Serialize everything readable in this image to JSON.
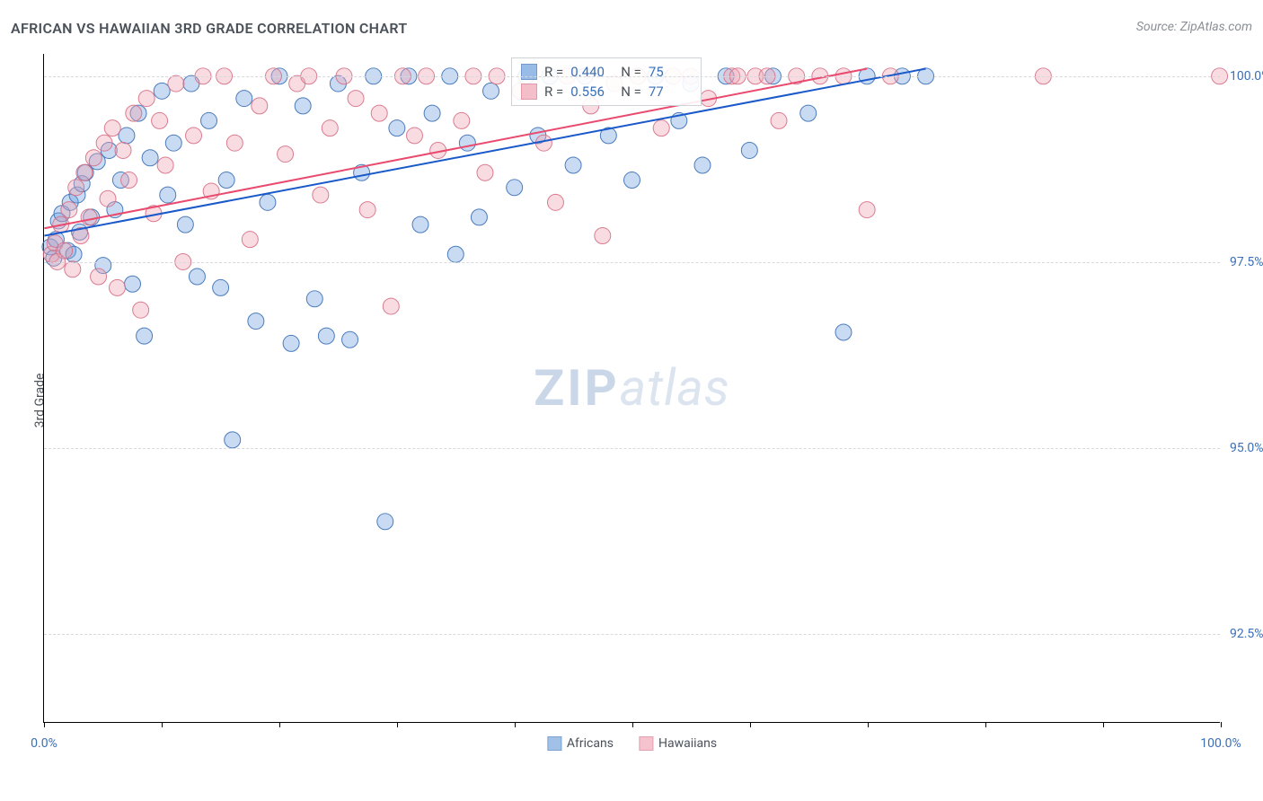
{
  "title": "AFRICAN VS HAWAIIAN 3RD GRADE CORRELATION CHART",
  "source": "Source: ZipAtlas.com",
  "watermark_bold": "ZIP",
  "watermark_light": "atlas",
  "chart": {
    "type": "scatter",
    "plot_bg": "#ffffff",
    "grid_color": "#d6d9dd",
    "axis_color": "#000000",
    "tick_label_color": "#3b6fb6",
    "y_axis_label": "3rd Grade",
    "x_range": [
      0,
      100
    ],
    "y_range": [
      91.3,
      100.3
    ],
    "y_ticks": [
      {
        "v": 100.0,
        "label": "100.0%"
      },
      {
        "v": 97.5,
        "label": "97.5%"
      },
      {
        "v": 95.0,
        "label": "95.0%"
      },
      {
        "v": 92.5,
        "label": "92.5%"
      }
    ],
    "x_ticks": [
      0,
      10,
      20,
      30,
      40,
      50,
      60,
      70,
      80,
      90,
      100
    ],
    "x_tick_labels": [
      {
        "v": 0,
        "label": "0.0%"
      },
      {
        "v": 100,
        "label": "100.0%"
      }
    ],
    "marker_radius": 9,
    "marker_fill_opacity": 0.38,
    "marker_stroke_opacity": 0.9,
    "trend_line_width": 2,
    "series": [
      {
        "key": "africans",
        "label": "Africans",
        "color_fill": "#6fa0de",
        "color_stroke": "#3b6fb6",
        "trend_color": "#1959c9",
        "R": "0.440",
        "N": "75",
        "trend": {
          "x1": 0,
          "y1": 97.85,
          "x2": 75,
          "y2": 100.1
        },
        "points": [
          [
            0.5,
            97.7
          ],
          [
            0.8,
            97.55
          ],
          [
            1.0,
            97.8
          ],
          [
            1.2,
            98.05
          ],
          [
            1.5,
            98.15
          ],
          [
            2.0,
            97.65
          ],
          [
            2.2,
            98.3
          ],
          [
            2.5,
            97.6
          ],
          [
            2.8,
            98.4
          ],
          [
            3.0,
            97.9
          ],
          [
            3.2,
            98.55
          ],
          [
            3.5,
            98.7
          ],
          [
            4.0,
            98.1
          ],
          [
            4.5,
            98.85
          ],
          [
            5.0,
            97.45
          ],
          [
            5.5,
            99.0
          ],
          [
            6.0,
            98.2
          ],
          [
            6.5,
            98.6
          ],
          [
            7.0,
            99.2
          ],
          [
            7.5,
            97.2
          ],
          [
            8.0,
            99.5
          ],
          [
            8.5,
            96.5
          ],
          [
            9.0,
            98.9
          ],
          [
            10.0,
            99.8
          ],
          [
            10.5,
            98.4
          ],
          [
            11.0,
            99.1
          ],
          [
            12.0,
            98.0
          ],
          [
            12.5,
            99.9
          ],
          [
            13.0,
            97.3
          ],
          [
            14.0,
            99.4
          ],
          [
            15.0,
            97.15
          ],
          [
            15.5,
            98.6
          ],
          [
            16.0,
            95.1
          ],
          [
            17.0,
            99.7
          ],
          [
            18.0,
            96.7
          ],
          [
            19.0,
            98.3
          ],
          [
            20.0,
            100.0
          ],
          [
            21.0,
            96.4
          ],
          [
            22.0,
            99.6
          ],
          [
            23.0,
            97.0
          ],
          [
            24.0,
            96.5
          ],
          [
            25.0,
            99.9
          ],
          [
            26.0,
            96.45
          ],
          [
            27.0,
            98.7
          ],
          [
            28.0,
            100.0
          ],
          [
            29.0,
            94.0
          ],
          [
            30.0,
            99.3
          ],
          [
            31.0,
            100.0
          ],
          [
            32.0,
            98.0
          ],
          [
            33.0,
            99.5
          ],
          [
            34.5,
            100.0
          ],
          [
            35.0,
            97.6
          ],
          [
            36.0,
            99.1
          ],
          [
            37.0,
            98.1
          ],
          [
            38.0,
            99.8
          ],
          [
            40.0,
            98.5
          ],
          [
            41.0,
            100.0
          ],
          [
            42.0,
            99.2
          ],
          [
            43.0,
            100.0
          ],
          [
            45.0,
            98.8
          ],
          [
            46.0,
            100.0
          ],
          [
            48.0,
            99.2
          ],
          [
            50.0,
            98.6
          ],
          [
            52.0,
            100.0
          ],
          [
            54.0,
            99.4
          ],
          [
            55.0,
            99.9
          ],
          [
            56.0,
            98.8
          ],
          [
            58.0,
            100.0
          ],
          [
            60.0,
            99.0
          ],
          [
            62.0,
            100.0
          ],
          [
            65.0,
            99.5
          ],
          [
            68.0,
            96.55
          ],
          [
            70.0,
            100.0
          ],
          [
            73.0,
            100.0
          ],
          [
            75.0,
            100.0
          ]
        ]
      },
      {
        "key": "hawaiians",
        "label": "Hawaiians",
        "color_fill": "#f0a4b4",
        "color_stroke": "#d66f86",
        "trend_color": "#e94a6e",
        "R": "0.556",
        "N": "77",
        "trend": {
          "x1": 0,
          "y1": 97.95,
          "x2": 70,
          "y2": 100.1
        },
        "points": [
          [
            0.6,
            97.6
          ],
          [
            0.9,
            97.75
          ],
          [
            1.1,
            97.5
          ],
          [
            1.4,
            98.0
          ],
          [
            1.7,
            97.65
          ],
          [
            2.1,
            98.2
          ],
          [
            2.4,
            97.4
          ],
          [
            2.7,
            98.5
          ],
          [
            3.1,
            97.85
          ],
          [
            3.4,
            98.7
          ],
          [
            3.8,
            98.1
          ],
          [
            4.2,
            98.9
          ],
          [
            4.6,
            97.3
          ],
          [
            5.1,
            99.1
          ],
          [
            5.4,
            98.35
          ],
          [
            5.8,
            99.3
          ],
          [
            6.2,
            97.15
          ],
          [
            6.7,
            99.0
          ],
          [
            7.2,
            98.6
          ],
          [
            7.6,
            99.5
          ],
          [
            8.2,
            96.85
          ],
          [
            8.7,
            99.7
          ],
          [
            9.3,
            98.15
          ],
          [
            9.8,
            99.4
          ],
          [
            10.3,
            98.8
          ],
          [
            11.2,
            99.9
          ],
          [
            11.8,
            97.5
          ],
          [
            12.7,
            99.2
          ],
          [
            13.5,
            100.0
          ],
          [
            14.2,
            98.45
          ],
          [
            15.3,
            100.0
          ],
          [
            16.2,
            99.1
          ],
          [
            17.5,
            97.8
          ],
          [
            18.3,
            99.6
          ],
          [
            19.5,
            100.0
          ],
          [
            20.5,
            98.95
          ],
          [
            21.5,
            99.9
          ],
          [
            22.5,
            100.0
          ],
          [
            23.5,
            98.4
          ],
          [
            24.3,
            99.3
          ],
          [
            25.5,
            100.0
          ],
          [
            26.5,
            99.7
          ],
          [
            27.5,
            98.2
          ],
          [
            28.5,
            99.5
          ],
          [
            29.5,
            96.9
          ],
          [
            30.5,
            100.0
          ],
          [
            31.5,
            99.2
          ],
          [
            32.5,
            100.0
          ],
          [
            33.5,
            99.0
          ],
          [
            35.5,
            99.4
          ],
          [
            36.5,
            100.0
          ],
          [
            37.5,
            98.7
          ],
          [
            38.5,
            100.0
          ],
          [
            40.5,
            99.8
          ],
          [
            42.5,
            99.1
          ],
          [
            43.5,
            98.3
          ],
          [
            44.5,
            100.0
          ],
          [
            46.5,
            99.6
          ],
          [
            47.5,
            97.85
          ],
          [
            48.5,
            99.9
          ],
          [
            50.5,
            100.0
          ],
          [
            52.5,
            99.3
          ],
          [
            53.5,
            100.0
          ],
          [
            55.0,
            100.0
          ],
          [
            56.5,
            99.7
          ],
          [
            58.5,
            100.0
          ],
          [
            59.0,
            100.0
          ],
          [
            60.5,
            100.0
          ],
          [
            61.5,
            100.0
          ],
          [
            62.5,
            99.4
          ],
          [
            64.0,
            100.0
          ],
          [
            66.0,
            100.0
          ],
          [
            68.0,
            100.0
          ],
          [
            70.0,
            98.2
          ],
          [
            72.0,
            100.0
          ],
          [
            85.0,
            100.0
          ],
          [
            100.0,
            100.0
          ]
        ]
      }
    ]
  },
  "legend_labels": {
    "R_prefix": "R =",
    "N_prefix": "N ="
  }
}
